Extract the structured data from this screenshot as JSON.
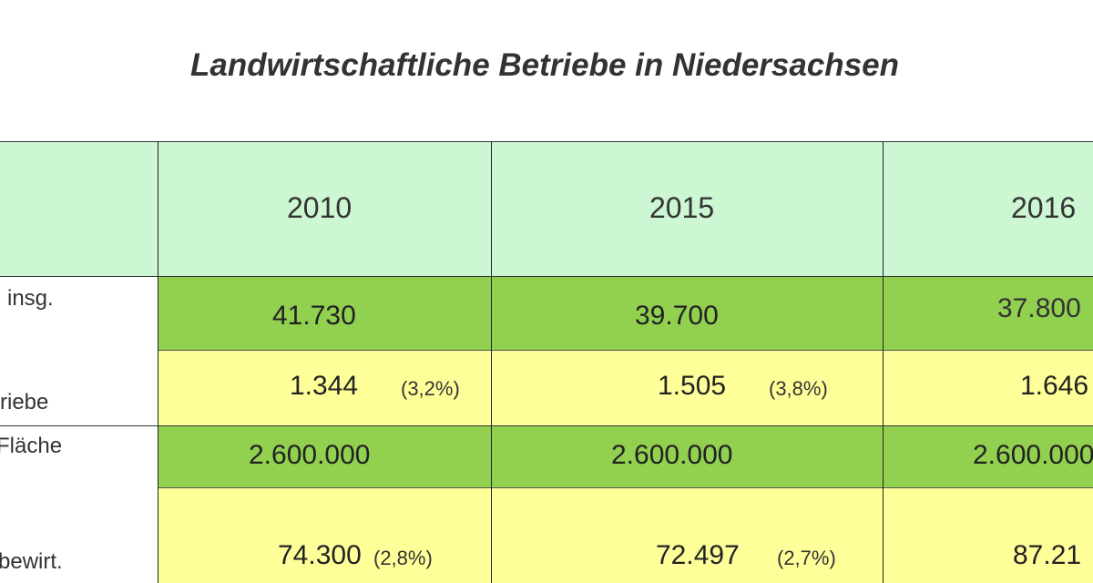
{
  "title": "Landwirtschaftliche Betriebe  in Niedersachsen",
  "colors": {
    "header": "#ccf7d2",
    "dark_green": "#92d050",
    "yellow": "#ffff99"
  },
  "table": {
    "years": [
      "2010",
      "2015",
      "2016"
    ],
    "row_labels": [
      "insg.",
      "riebe",
      "Fläche",
      "bewirt."
    ],
    "rows": [
      {
        "values": [
          "41.730",
          "39.700",
          "37.800"
        ]
      },
      {
        "values": [
          "1.344",
          "1.505",
          "1.646"
        ],
        "percents": [
          "(3,2%)",
          "(3,8%)"
        ]
      },
      {
        "values": [
          "2.600.000",
          "2.600.000",
          "2.600.000"
        ]
      },
      {
        "values": [
          "74.300",
          "72.497",
          "87.21"
        ],
        "percents": [
          "(2,8%)",
          "(2,7%)"
        ]
      }
    ]
  }
}
